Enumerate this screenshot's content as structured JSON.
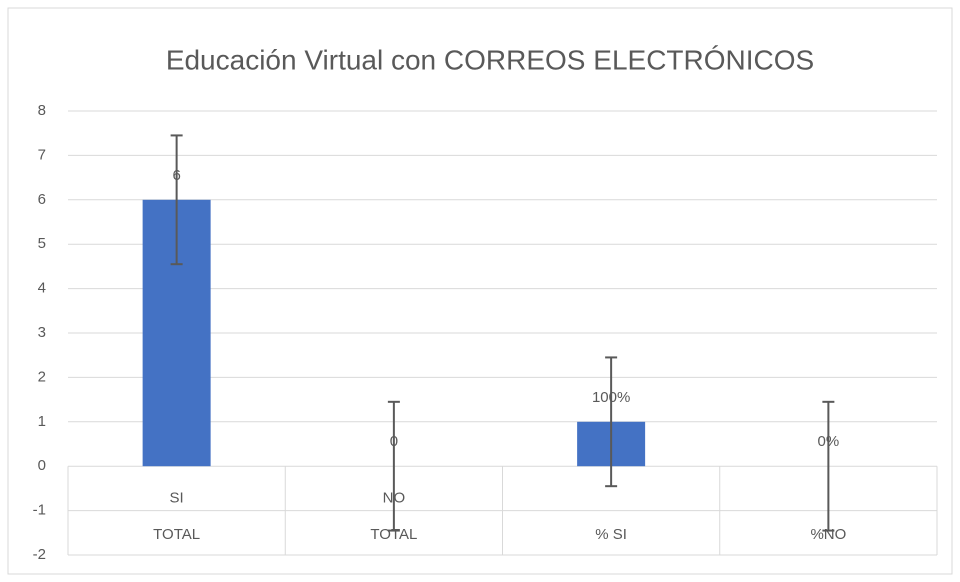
{
  "chart_data": {
    "type": "bar",
    "title": "Educación Virtual con CORREOS ELECTRÓNICOS",
    "categories": [
      "SI",
      "NO",
      null,
      null
    ],
    "outer_categories": [
      "TOTAL",
      "TOTAL",
      "% SI",
      "%NO"
    ],
    "values": [
      6,
      0,
      1,
      0
    ],
    "value_labels": [
      "6",
      "0",
      "100%",
      "0%"
    ],
    "errors": [
      1.45,
      1.45,
      1.45,
      1.45
    ],
    "color": "#4472c4",
    "error_color": "#595959",
    "ylim": [
      -2,
      8
    ],
    "yticks": [
      -2,
      -1,
      0,
      1,
      2,
      3,
      4,
      5,
      6,
      7,
      8
    ],
    "grid": true
  }
}
